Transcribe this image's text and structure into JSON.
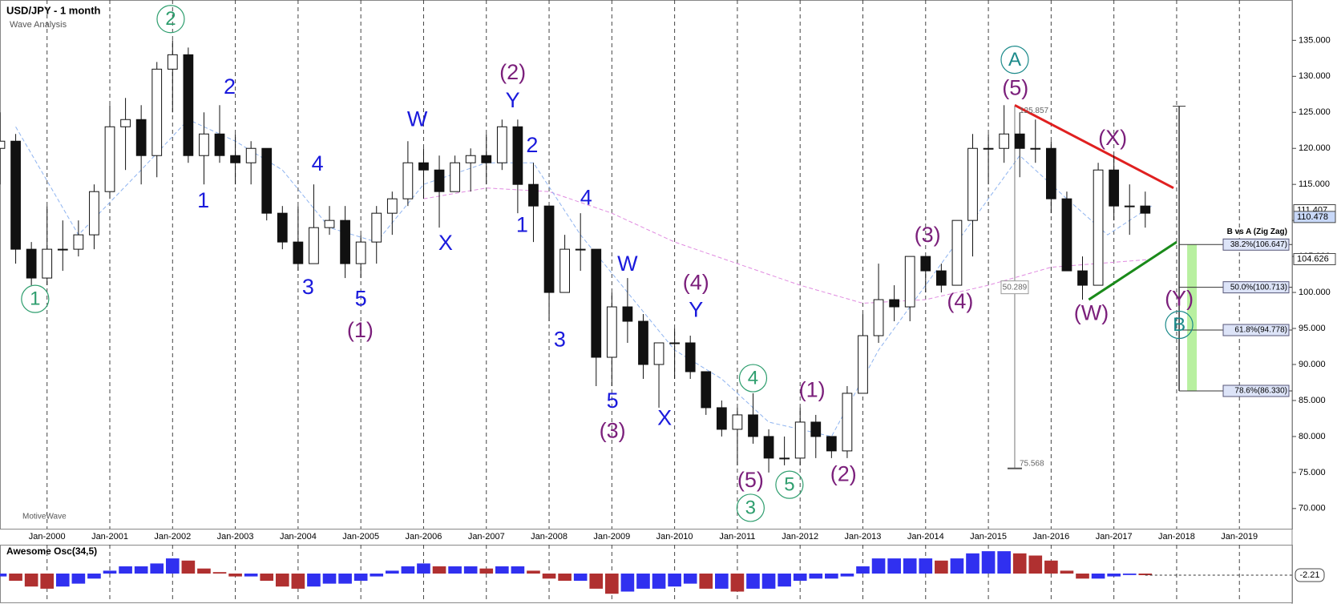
{
  "chart_data": {
    "type": "candlestick",
    "title": "USD/JPY - 1 month",
    "subtitle": "Wave Analysis",
    "watermark": "MotiveWave",
    "xlim": [
      1999.25,
      2019.84
    ],
    "ylim": [
      67.2,
      140.6
    ],
    "xticks": [
      {
        "value": 2000,
        "label": "Jan-2000"
      },
      {
        "value": 2001,
        "label": "Jan-2001"
      },
      {
        "value": 2002,
        "label": "Jan-2002"
      },
      {
        "value": 2003,
        "label": "Jan-2003"
      },
      {
        "value": 2004,
        "label": "Jan-2004"
      },
      {
        "value": 2005,
        "label": "Jan-2005"
      },
      {
        "value": 2006,
        "label": "Jan-2006"
      },
      {
        "value": 2007,
        "label": "Jan-2007"
      },
      {
        "value": 2008,
        "label": "Jan-2008"
      },
      {
        "value": 2009,
        "label": "Jan-2009"
      },
      {
        "value": 2010,
        "label": "Jan-2010"
      },
      {
        "value": 2011,
        "label": "Jan-2011"
      },
      {
        "value": 2012,
        "label": "Jan-2012"
      },
      {
        "value": 2013,
        "label": "Jan-2013"
      },
      {
        "value": 2014,
        "label": "Jan-2014"
      },
      {
        "value": 2015,
        "label": "Jan-2015"
      },
      {
        "value": 2016,
        "label": "Jan-2016"
      },
      {
        "value": 2017,
        "label": "Jan-2017"
      },
      {
        "value": 2018,
        "label": "Jan-2018"
      },
      {
        "value": 2019,
        "label": "Jan-2019"
      }
    ],
    "yticks": [
      {
        "value": 70,
        "label": "70.000"
      },
      {
        "value": 75,
        "label": "75.000"
      },
      {
        "value": 80,
        "label": "80.000"
      },
      {
        "value": 85,
        "label": "85.000"
      },
      {
        "value": 90,
        "label": "90.000"
      },
      {
        "value": 95,
        "label": "95.000"
      },
      {
        "value": 100,
        "label": "100.000"
      },
      {
        "value": 105,
        "label": "105.000"
      },
      {
        "value": 110,
        "label": "110.000"
      },
      {
        "value": 115,
        "label": "115.000"
      },
      {
        "value": 120,
        "label": "120.000"
      },
      {
        "value": 125,
        "label": "125.000"
      },
      {
        "value": 130,
        "label": "130.000"
      },
      {
        "value": 135,
        "label": "135.000"
      }
    ],
    "x": [
      1999.25,
      1999.5,
      1999.75,
      2000,
      2000.25,
      2000.5,
      2000.75,
      2001,
      2001.25,
      2001.5,
      2001.75,
      2002,
      2002.25,
      2002.5,
      2002.75,
      2003,
      2003.25,
      2003.5,
      2003.75,
      2004,
      2004.25,
      2004.5,
      2004.75,
      2005,
      2005.25,
      2005.5,
      2005.75,
      2006,
      2006.25,
      2006.5,
      2006.75,
      2007,
      2007.25,
      2007.5,
      2007.75,
      2008,
      2008.25,
      2008.5,
      2008.75,
      2009,
      2009.25,
      2009.5,
      2009.75,
      2010,
      2010.25,
      2010.5,
      2010.75,
      2011,
      2011.25,
      2011.5,
      2011.75,
      2012,
      2012.25,
      2012.5,
      2012.75,
      2013,
      2013.25,
      2013.5,
      2013.75,
      2014,
      2014.25,
      2014.5,
      2014.75,
      2015,
      2015.25,
      2015.5,
      2015.75,
      2016,
      2016.25,
      2016.5,
      2016.75,
      2017,
      2017.25,
      2017.5
    ],
    "series": [
      {
        "up_color": "#ffffff",
        "down_color": "#111111",
        "open": [
          120,
          121,
          106,
          102,
          106,
          106,
          108,
          114,
          123,
          124,
          119,
          131,
          133,
          119,
          122,
          119,
          118,
          120,
          111,
          107,
          104,
          109,
          110,
          104,
          107,
          111,
          113,
          118,
          117,
          114,
          118,
          119,
          118,
          123,
          115,
          112,
          100,
          106,
          106,
          91,
          98,
          96,
          90,
          93,
          93,
          89,
          84,
          81,
          83,
          80,
          77,
          77,
          82,
          80,
          78,
          86,
          94,
          99,
          98,
          105,
          103,
          101,
          110,
          120,
          120,
          122,
          120,
          120,
          113,
          103,
          101,
          117,
          112,
          112
        ],
        "high": [
          125,
          122,
          107,
          112,
          110,
          110,
          115,
          126,
          127,
          126,
          132,
          135,
          134,
          125,
          126,
          122,
          121,
          120,
          112,
          112,
          115,
          112,
          112,
          108,
          112,
          114,
          121,
          120,
          119,
          119,
          120,
          122,
          124,
          124,
          118,
          112,
          108,
          111,
          106,
          100,
          102,
          97,
          93,
          95,
          94,
          89,
          85,
          84,
          86,
          81,
          80,
          84,
          83,
          80,
          87,
          97,
          104,
          101,
          105,
          105,
          104,
          110,
          122,
          122,
          126,
          125,
          124,
          121,
          114,
          105,
          118,
          119,
          115,
          114
        ],
        "low": [
          115,
          104,
          101,
          101,
          103,
          105,
          106,
          113,
          117,
          115,
          116,
          125,
          118,
          115,
          118,
          115,
          115,
          110,
          106,
          103,
          104,
          108,
          102,
          102,
          104,
          108,
          112,
          113,
          109,
          114,
          114,
          115,
          117,
          111,
          107,
          96,
          100,
          103,
          87,
          87,
          93,
          88,
          84,
          88,
          88,
          83,
          80,
          76,
          79,
          75,
          76,
          76,
          77,
          77,
          77,
          86,
          93,
          96,
          96,
          100,
          100,
          101,
          105,
          115,
          118,
          116,
          118,
          111,
          103,
          99,
          101,
          110,
          108,
          109
        ],
        "close": [
          121,
          106,
          102,
          106,
          106,
          108,
          114,
          123,
          124,
          119,
          131,
          133,
          119,
          122,
          119,
          118,
          120,
          111,
          107,
          104,
          109,
          110,
          104,
          107,
          111,
          113,
          118,
          117,
          114,
          118,
          119,
          118,
          123,
          115,
          112,
          100,
          106,
          106,
          91,
          98,
          96,
          90,
          93,
          93,
          89,
          84,
          81,
          83,
          80,
          77,
          77,
          82,
          80,
          78,
          86,
          94,
          99,
          98,
          105,
          103,
          101,
          110,
          120,
          120,
          122,
          120,
          120,
          113,
          103,
          101,
          117,
          112,
          112,
          111
        ]
      }
    ],
    "lines": [
      {
        "color": "#e08be0",
        "dash": true,
        "width": 1,
        "x": [
          2006,
          2007,
          2008,
          2009,
          2010,
          2011,
          2012,
          2013,
          2014,
          2015,
          2016,
          2017.6
        ],
        "values": [
          113,
          114.5,
          114,
          111,
          107,
          104,
          101,
          98.5,
          99,
          101,
          103.5,
          104.6
        ]
      },
      {
        "color": "#8fb4f0",
        "dash": true,
        "width": 1,
        "x": [
          1999.5,
          2000.5,
          2001.5,
          2002.25,
          2003,
          2003.75,
          2004.5,
          2005.25,
          2006,
          2007,
          2007.75,
          2008.5,
          2009.25,
          2010,
          2010.75,
          2011.5,
          2012.5,
          2013.25,
          2014,
          2014.75,
          2015.5,
          2016.25,
          2016.9,
          2017.6
        ],
        "values": [
          123,
          108,
          117,
          124,
          121,
          117,
          109,
          107,
          115,
          118,
          118,
          108,
          100,
          92,
          88,
          82,
          80,
          92,
          101,
          110,
          119,
          113,
          108,
          112
        ]
      },
      {
        "color": "#e02020",
        "dash": false,
        "width": 3,
        "x": [
          2015.42,
          2017.95
        ],
        "values": [
          126,
          114.5
        ]
      },
      {
        "color": "#1a8a1a",
        "dash": false,
        "width": 3,
        "x": [
          2016.6,
          2018
        ],
        "values": [
          99,
          107
        ]
      }
    ],
    "annotations": [
      {
        "text": "2",
        "x": 2001.97,
        "y": 137.96,
        "color": "#2e9e6e",
        "circle": true
      },
      {
        "text": "1",
        "x": 1999.81,
        "y": 99.1,
        "color": "#2e9e6e",
        "circle": true
      },
      {
        "text": "2",
        "x": 2002.91,
        "y": 128.5,
        "color": "#1a1adc",
        "circle": false
      },
      {
        "text": "1",
        "x": 2002.49,
        "y": 112.7,
        "color": "#1a1adc",
        "circle": false
      },
      {
        "text": "4",
        "x": 2004.31,
        "y": 117.8,
        "color": "#1a1adc",
        "circle": false
      },
      {
        "text": "3",
        "x": 2004.16,
        "y": 100.7,
        "color": "#1a1adc",
        "circle": false
      },
      {
        "text": "5",
        "x": 2005,
        "y": 99.1,
        "color": "#1a1adc",
        "circle": false
      },
      {
        "text": "(1)",
        "x": 2004.99,
        "y": 94.7,
        "color": "#7b1f7b",
        "circle": false
      },
      {
        "text": "W",
        "x": 2005.9,
        "y": 124,
        "color": "#1a1adc",
        "circle": false
      },
      {
        "text": "X",
        "x": 2006.35,
        "y": 106.8,
        "color": "#1a1adc",
        "circle": false
      },
      {
        "text": "(2)",
        "x": 2007.42,
        "y": 130.5,
        "color": "#7b1f7b",
        "circle": false
      },
      {
        "text": "Y",
        "x": 2007.42,
        "y": 126.6,
        "color": "#1a1adc",
        "circle": false
      },
      {
        "text": "2",
        "x": 2007.73,
        "y": 120.4,
        "color": "#1a1adc",
        "circle": false
      },
      {
        "text": "1",
        "x": 2007.57,
        "y": 109.3,
        "color": "#1a1adc",
        "circle": false
      },
      {
        "text": "4",
        "x": 2008.59,
        "y": 113.1,
        "color": "#1a1adc",
        "circle": false
      },
      {
        "text": "3",
        "x": 2008.17,
        "y": 93.4,
        "color": "#1a1adc",
        "circle": false
      },
      {
        "text": "W",
        "x": 2009.25,
        "y": 103.9,
        "color": "#1a1adc",
        "circle": false
      },
      {
        "text": "5",
        "x": 2009.01,
        "y": 84.9,
        "color": "#1a1adc",
        "circle": false
      },
      {
        "text": "(3)",
        "x": 2009.01,
        "y": 80.7,
        "color": "#7b1f7b",
        "circle": false
      },
      {
        "text": "(4)",
        "x": 2010.34,
        "y": 101.3,
        "color": "#7b1f7b",
        "circle": false
      },
      {
        "text": "Y",
        "x": 2010.34,
        "y": 97.5,
        "color": "#1a1adc",
        "circle": false
      },
      {
        "text": "X",
        "x": 2009.84,
        "y": 82.5,
        "color": "#1a1adc",
        "circle": false
      },
      {
        "text": "4",
        "x": 2011.25,
        "y": 88.1,
        "color": "#2e9e6e",
        "circle": true
      },
      {
        "text": "(5)",
        "x": 2011.21,
        "y": 73.9,
        "color": "#7b1f7b",
        "circle": false
      },
      {
        "text": "3",
        "x": 2011.21,
        "y": 70.1,
        "color": "#2e9e6e",
        "circle": true
      },
      {
        "text": "5",
        "x": 2011.83,
        "y": 73.3,
        "color": "#2e9e6e",
        "circle": true
      },
      {
        "text": "(1)",
        "x": 2012.19,
        "y": 86.4,
        "color": "#7b1f7b",
        "circle": false
      },
      {
        "text": "(2)",
        "x": 2012.69,
        "y": 74.7,
        "color": "#7b1f7b",
        "circle": false
      },
      {
        "text": "(3)",
        "x": 2014.03,
        "y": 107.9,
        "color": "#7b1f7b",
        "circle": false
      },
      {
        "text": "(4)",
        "x": 2014.55,
        "y": 98.7,
        "color": "#7b1f7b",
        "circle": false
      },
      {
        "text": "A",
        "x": 2015.42,
        "y": 132.3,
        "color": "#1b8a8a",
        "circle": true
      },
      {
        "text": "(5)",
        "x": 2015.43,
        "y": 128.3,
        "color": "#7b1f7b",
        "circle": false
      },
      {
        "text": "(X)",
        "x": 2016.98,
        "y": 121.4,
        "color": "#7b1f7b",
        "circle": false
      },
      {
        "text": "(W)",
        "x": 2016.64,
        "y": 97.1,
        "color": "#7b1f7b",
        "circle": false
      },
      {
        "text": "(Y)",
        "x": 2018.04,
        "y": 99.1,
        "color": "#7b1f7b",
        "circle": false
      },
      {
        "text": "B",
        "x": 2018.04,
        "y": 95.5,
        "color": "#1b8a8a",
        "circle": true
      }
    ],
    "range_line": {
      "x": 2015.42,
      "high": 125.857,
      "low": 75.568,
      "span": 50.289
    },
    "fib": {
      "title": "B vs A (Zig Zag)",
      "x": 2018.04,
      "box_color": "#b8f0a0",
      "levels": [
        {
          "value": 106.647,
          "label": "38.2%(106.647)"
        },
        {
          "value": 100.713,
          "label": "50.0%(100.713)"
        },
        {
          "value": 94.778,
          "label": "61.8%(94.778)"
        },
        {
          "value": 86.33,
          "label": "78.6%(86.330)"
        }
      ]
    },
    "price_markers": [
      {
        "value": 111.407,
        "label": "111.407",
        "color": "#ffffff"
      },
      {
        "value": 110.478,
        "label": "110.478",
        "color": "#c8d8f8"
      },
      {
        "value": 104.626,
        "label": "104.626",
        "color": "#ffffff"
      }
    ],
    "oscillator": {
      "title": "Awesome Osc(34,5)",
      "ylim": [
        -40,
        40
      ],
      "up_color": "#3030f0",
      "down_color": "#b03030",
      "values": [
        -4,
        -10,
        -18,
        -21,
        -18,
        -14,
        -7,
        4,
        10,
        10,
        14,
        21,
        18,
        7,
        2,
        -4,
        -4,
        -10,
        -18,
        -21,
        -18,
        -14,
        -14,
        -10,
        -4,
        4,
        10,
        14,
        10,
        10,
        10,
        7,
        10,
        10,
        4,
        -7,
        -10,
        -10,
        -21,
        -28,
        -25,
        -21,
        -21,
        -18,
        -14,
        -21,
        -21,
        -25,
        -21,
        -21,
        -18,
        -10,
        -7,
        -7,
        -4,
        10,
        21,
        21,
        21,
        21,
        18,
        21,
        28,
        31,
        31,
        28,
        25,
        18,
        4,
        -7,
        -7,
        -4,
        -2,
        -2.21
      ]
    }
  }
}
